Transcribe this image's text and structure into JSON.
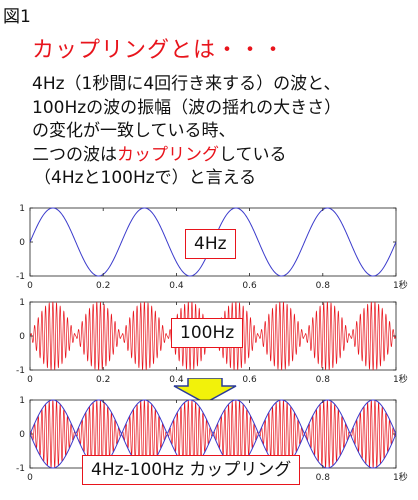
{
  "figure_label": "図1",
  "heading": "カップリングとは・・・",
  "description": {
    "line1": "4Hz（1秒間に4回行き来する）の波と、",
    "line2": "100Hzの波の振幅（波の揺れの大きさ）",
    "line3": "の変化が一致している時、",
    "line4_pre": "二つの波は",
    "line4_red": "カップリング",
    "line4_post": "している",
    "line5": "（4Hzと100Hzで）と言える"
  },
  "colors": {
    "red": "#e8141c",
    "blue": "#3c3ccc",
    "arrow_fill": "#f2f20a",
    "arrow_stroke": "#2a3a9a"
  },
  "chart_data": [
    {
      "type": "line",
      "series": [
        {
          "frequency_hz": 4,
          "amplitude": 1,
          "color": "#3c3ccc"
        }
      ],
      "x_range": [
        0,
        1
      ],
      "y_range": [
        -1,
        1
      ],
      "x_ticks": [
        "0",
        "0.2",
        "0.4",
        "0.6",
        "0.8",
        "1秒"
      ],
      "y_ticks": [
        "1",
        "0",
        "-1"
      ],
      "callout": "4Hz"
    },
    {
      "type": "line",
      "series": [
        {
          "frequency_hz": 100,
          "envelope_frequency_hz": 4,
          "amplitude": 1,
          "color": "#e8141c"
        }
      ],
      "x_range": [
        0,
        1
      ],
      "y_range": [
        -1,
        1
      ],
      "x_ticks": [
        "0",
        "0.2",
        "0.4",
        "0.6",
        "0.8",
        "1秒"
      ],
      "y_ticks": [
        "1",
        "0",
        "-1"
      ],
      "callout": "100Hz"
    },
    {
      "type": "line",
      "series": [
        {
          "frequency_hz": 100,
          "envelope_frequency_hz": 4,
          "amplitude": 1,
          "color": "#e8141c"
        },
        {
          "frequency_hz": 4,
          "amplitude": 1,
          "envelope": true,
          "color": "#3c3ccc"
        }
      ],
      "x_range": [
        0,
        1
      ],
      "y_range": [
        -1,
        1
      ],
      "x_ticks": [
        "0",
        "0.2",
        "0.4",
        "0.6",
        "0.8",
        "1秒"
      ],
      "y_ticks": [
        "1",
        "0",
        "-1"
      ],
      "callout": "4Hz-100Hz カップリング"
    }
  ]
}
